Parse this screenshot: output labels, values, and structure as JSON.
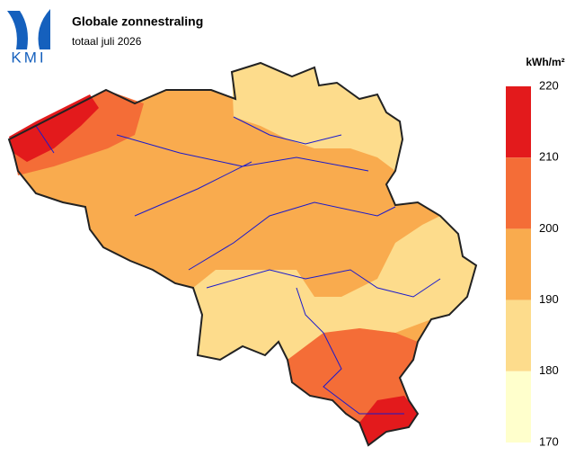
{
  "header": {
    "logo": "KMI",
    "title": "Globale zonnestraling",
    "subtitle": "totaal juli 2026"
  },
  "legend": {
    "unit": "kWh/m²",
    "ticks": [
      220,
      210,
      200,
      190,
      180,
      170
    ],
    "colors": [
      "#e31a1c",
      "#f46d37",
      "#f9ab4e",
      "#fddc8c",
      "#ffffcc"
    ]
  }
}
